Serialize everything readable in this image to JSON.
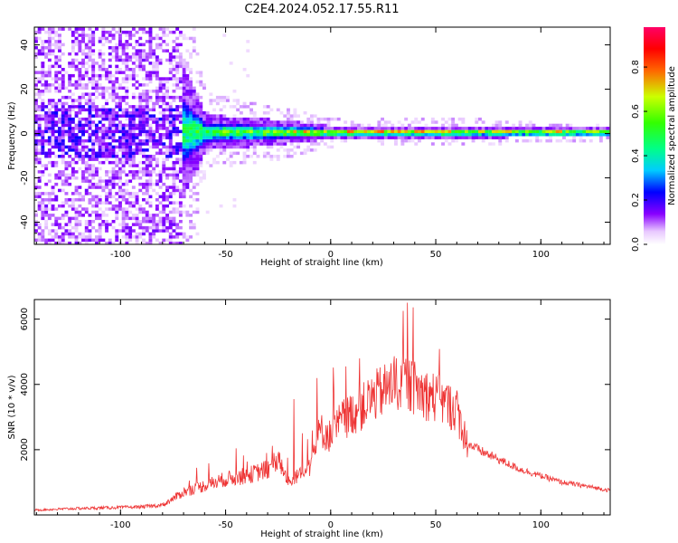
{
  "figure": {
    "title": "C2E4.2024.052.17.55.R11"
  },
  "chart_data": [
    {
      "type": "heatmap",
      "title": "C2E4.2024.052.17.55.R11",
      "xlabel": "Height of straight line (km)",
      "ylabel": "Frequency (Hz)",
      "xlim": [
        -141,
        133
      ],
      "ylim": [
        -50,
        48
      ],
      "x_ticks": [
        "-100",
        "-50",
        "0",
        "50",
        "100"
      ],
      "y_ticks": [
        "-40",
        "-20",
        "0",
        "20",
        "40"
      ],
      "colorbar": {
        "label": "Normalized spectral amplitude",
        "range": [
          0,
          0.98
        ],
        "ticks": [
          "0.0",
          "0.2",
          "0.4",
          "0.6",
          "0.8"
        ],
        "colormap": "rainbow (white-violet-blue-cyan-green-yellow-red-magenta)"
      },
      "description_points": [
        {
          "x": -120,
          "noise_band_halfwidth_hz": 48,
          "peak_amplitude": 0.2
        },
        {
          "x": -80,
          "noise_band_halfwidth_hz": 48,
          "peak_amplitude": 0.35
        },
        {
          "x": -60,
          "noise_band_halfwidth_hz": 8,
          "peak_amplitude": 0.55
        },
        {
          "x": -30,
          "noise_band_halfwidth_hz": 6,
          "peak_amplitude": 0.6
        },
        {
          "x": 0,
          "noise_band_halfwidth_hz": 3,
          "peak_amplitude": 0.85
        },
        {
          "x": 30,
          "noise_band_halfwidth_hz": 3,
          "peak_amplitude": 0.85
        },
        {
          "x": 60,
          "noise_band_halfwidth_hz": 3,
          "peak_amplitude": 0.8
        },
        {
          "x": 100,
          "noise_band_halfwidth_hz": 2,
          "peak_amplitude": 0.85
        },
        {
          "x": 130,
          "noise_band_halfwidth_hz": 2,
          "peak_amplitude": 0.75
        }
      ],
      "grid": false
    },
    {
      "type": "line",
      "xlabel": "Height of straight line (km)",
      "ylabel": "SNR (10 * v/v)",
      "xlim": [
        -141,
        133
      ],
      "ylim": [
        0,
        6600
      ],
      "x_ticks": [
        "-100",
        "-50",
        "0",
        "50",
        "100"
      ],
      "y_ticks": [
        "2000",
        "4000",
        "6000"
      ],
      "color": "#ee3333",
      "series": [
        {
          "x": [
            -141,
            -120,
            -100,
            -90,
            -80,
            -75,
            -70,
            -60,
            -50,
            -40,
            -30,
            -25,
            -20,
            -10,
            -5,
            0,
            5,
            10,
            15,
            20,
            25,
            30,
            35,
            40,
            45,
            50,
            55,
            60,
            65,
            70,
            80,
            90,
            100,
            110,
            120,
            133
          ],
          "y": [
            150,
            200,
            230,
            250,
            300,
            500,
            700,
            900,
            1100,
            1200,
            1400,
            1700,
            1000,
            1500,
            2600,
            2400,
            2900,
            3100,
            3300,
            3600,
            3800,
            4000,
            4100,
            3900,
            3700,
            3600,
            3400,
            3200,
            2200,
            2000,
            1700,
            1400,
            1200,
            1000,
            900,
            750
          ]
        }
      ],
      "grid": false
    }
  ]
}
